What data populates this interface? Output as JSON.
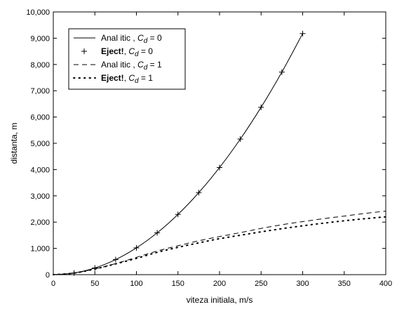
{
  "chart_data": {
    "type": "line",
    "title": "",
    "xlabel": "viteza initiala, m/s",
    "ylabel": "distanta, m",
    "xlim": [
      0,
      400
    ],
    "ylim": [
      0,
      10000
    ],
    "xticks": [
      0,
      50,
      100,
      150,
      200,
      250,
      300,
      350,
      400
    ],
    "yticks": [
      0,
      1000,
      2000,
      3000,
      4000,
      5000,
      6000,
      7000,
      8000,
      9000,
      10000
    ],
    "xtick_labels": [
      "0",
      "50",
      "100",
      "150",
      "200",
      "250",
      "300",
      "350",
      "400"
    ],
    "ytick_labels": [
      "0",
      "1,000",
      "2,000",
      "3,000",
      "4,000",
      "5,000",
      "6,000",
      "7,000",
      "8,000",
      "9,000",
      "10,000"
    ],
    "grid": false,
    "legend_position": "top-left",
    "series": [
      {
        "name": "Analitic, Cd = 0",
        "legend": {
          "marker": "solid",
          "prefix": "Anal itic",
          "cd_value": "0"
        },
        "style": "solid",
        "x": [
          0,
          25,
          50,
          75,
          100,
          125,
          150,
          175,
          200,
          225,
          250,
          275,
          300
        ],
        "y": [
          0,
          64,
          255,
          573,
          1020,
          1593,
          2294,
          3122,
          4078,
          5161,
          6372,
          7710,
          9176
        ]
      },
      {
        "name": "Eject!, Cd = 0",
        "legend": {
          "marker": "plus",
          "prefix": "Eject!",
          "cd_value": "0"
        },
        "style": "plus",
        "x": [
          25,
          50,
          75,
          100,
          125,
          150,
          175,
          200,
          225,
          250,
          275,
          300
        ],
        "y": [
          64,
          255,
          573,
          1020,
          1593,
          2294,
          3122,
          4078,
          5161,
          6372,
          7710,
          9176
        ]
      },
      {
        "name": "Analitic, Cd = 1",
        "legend": {
          "marker": "dashed",
          "prefix": "Anal itic",
          "cd_value": "1"
        },
        "style": "dashed",
        "x": [
          0,
          25,
          50,
          75,
          100,
          125,
          150,
          175,
          200,
          225,
          250,
          275,
          300,
          325,
          350,
          375,
          400
        ],
        "y": [
          0,
          60,
          220,
          420,
          660,
          900,
          1100,
          1290,
          1450,
          1600,
          1760,
          1900,
          2020,
          2130,
          2230,
          2330,
          2420
        ]
      },
      {
        "name": "Eject!, Cd = 1",
        "legend": {
          "marker": "dotted",
          "prefix": "Eject!",
          "cd_value": "1"
        },
        "style": "dotted",
        "x": [
          0,
          25,
          50,
          75,
          100,
          125,
          150,
          175,
          200,
          225,
          250,
          275,
          300,
          325,
          350,
          375,
          400
        ],
        "y": [
          0,
          60,
          215,
          410,
          620,
          850,
          1040,
          1210,
          1370,
          1500,
          1630,
          1750,
          1860,
          1960,
          2050,
          2130,
          2200
        ]
      }
    ]
  }
}
